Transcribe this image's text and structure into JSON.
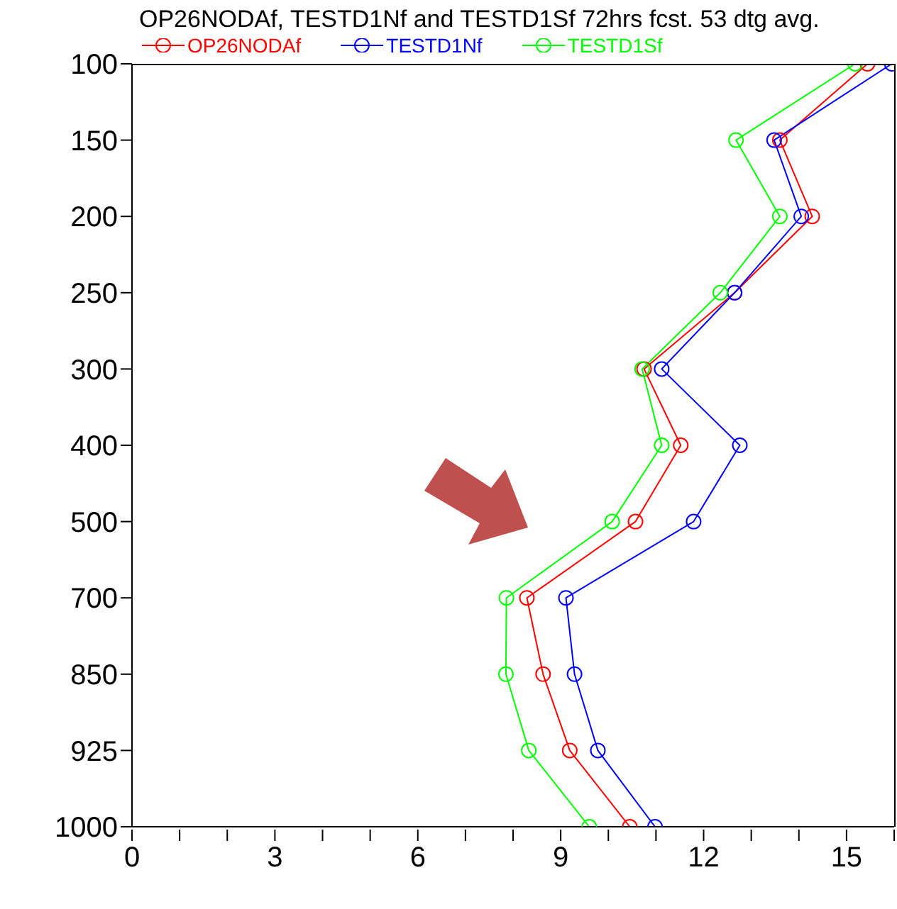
{
  "chart_data": {
    "type": "line",
    "title": "OP26NODAf, TESTD1Nf and TESTD1Sf 72hrs fcst. 53 dtg avg.",
    "orientation": "horizontal",
    "categories": [
      "100",
      "150",
      "200",
      "250",
      "300",
      "400",
      "500",
      "700",
      "850",
      "925",
      "1000"
    ],
    "series": [
      {
        "name": "OP26NODAf",
        "color": "#ff0000",
        "values": [
          15.44,
          13.6,
          14.28,
          12.65,
          10.75,
          11.52,
          10.57,
          8.29,
          8.63,
          9.19,
          10.45
        ]
      },
      {
        "name": "TESTD1Nf",
        "color": "#0000ff",
        "values": [
          15.95,
          13.48,
          14.05,
          12.65,
          11.12,
          12.76,
          11.79,
          9.11,
          9.29,
          9.78,
          10.98
        ]
      },
      {
        "name": "TESTD1Sf",
        "color": "#00ff00",
        "values": [
          15.18,
          12.68,
          13.6,
          12.35,
          10.71,
          11.12,
          10.08,
          7.86,
          7.85,
          8.33,
          9.6
        ]
      }
    ],
    "xlim": [
      0,
      16
    ],
    "xticks": [
      0,
      {
        "value": 1,
        "label": null
      },
      {
        "value": 2,
        "label": null
      },
      3,
      {
        "value": 4,
        "label": null
      },
      {
        "value": 5,
        "label": null
      },
      6,
      {
        "value": 7,
        "label": null
      },
      {
        "value": 8,
        "label": null
      },
      9,
      {
        "value": 10,
        "label": null
      },
      {
        "value": 11,
        "label": null
      },
      12,
      {
        "value": 13,
        "label": null
      },
      {
        "value": 14,
        "label": null
      },
      15,
      {
        "value": 16,
        "label": null
      }
    ],
    "grid": false,
    "legend": "top",
    "marker": "circle",
    "line_style": "solid"
  }
}
